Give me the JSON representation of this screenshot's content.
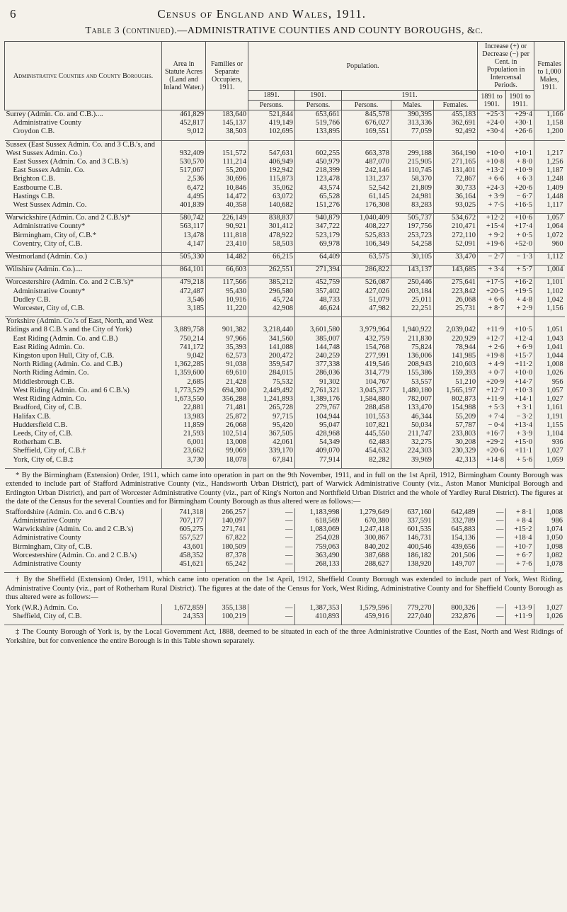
{
  "header": {
    "page_number": "6",
    "running_title": "Census of England and Wales, 1911."
  },
  "table": {
    "title": "Table 3 (continued).—ADMINISTRATIVE COUNTIES AND COUNTY BOROUGHS, &c.",
    "columns": {
      "name": "Administrative Counties and County Boroughs.",
      "area": "Area in Statute Acres (Land and Inland Water.)",
      "families": "Families or Separate Occupiers, 1911.",
      "population": "Population.",
      "years": [
        "1891.",
        "1901.",
        "1911."
      ],
      "persons": [
        "Persons.",
        "Persons.",
        "Persons."
      ],
      "males": "Males.",
      "females": "Females.",
      "increase": "Increase (+) or Decrease (−) per Cent. in Population in Intercensal Periods.",
      "periods": [
        "1891 to 1901.",
        "1901 to 1911."
      ],
      "ratio": "Females to 1,000 Males, 1911."
    },
    "groups": [
      {
        "rows": [
          {
            "name": "Surrey (Admin. Co. and C.B.)....",
            "cells": [
              "461,829",
              "183,640",
              "521,844",
              "653,661",
              "845,578",
              "390,395",
              "455,183",
              "+25·3",
              "+29·4",
              "1,166"
            ]
          },
          {
            "name": "Administrative County",
            "cells": [
              "452,817",
              "145,137",
              "419,149",
              "519,766",
              "676,027",
              "313,336",
              "362,691",
              "+24·0",
              "+30·1",
              "1,158"
            ]
          },
          {
            "name": "Croydon C.B.",
            "cells": [
              "9,012",
              "38,503",
              "102,695",
              "133,895",
              "169,551",
              "77,059",
              "92,492",
              "+30·4",
              "+26·6",
              "1,200"
            ]
          }
        ]
      },
      {
        "rows": [
          {
            "name": "Sussex (East Sussex Admin. Co. and 3 C.B.'s, and West Sussex Admin. Co.)",
            "cells": [
              "932,409",
              "151,572",
              "547,631",
              "602,255",
              "663,378",
              "299,188",
              "364,190",
              "+10·0",
              "+10·1",
              "1,217"
            ]
          },
          {
            "name": "East Sussex (Admin. Co. and 3 C.B.'s)",
            "cells": [
              "530,570",
              "111,214",
              "406,949",
              "450,979",
              "487,070",
              "215,905",
              "271,165",
              "+10·8",
              "+ 8·0",
              "1,256"
            ]
          },
          {
            "name": "East Sussex Admin. Co.",
            "cells": [
              "517,067",
              "55,200",
              "192,942",
              "218,399",
              "242,146",
              "110,745",
              "131,401",
              "+13·2",
              "+10·9",
              "1,187"
            ]
          },
          {
            "name": "Brighton C.B.",
            "cells": [
              "2,536",
              "30,696",
              "115,873",
              "123,478",
              "131,237",
              "58,370",
              "72,867",
              "+ 6·6",
              "+ 6·3",
              "1,248"
            ]
          },
          {
            "name": "Eastbourne C.B.",
            "cells": [
              "6,472",
              "10,846",
              "35,062",
              "43,574",
              "52,542",
              "21,809",
              "30,733",
              "+24·3",
              "+20·6",
              "1,409"
            ]
          },
          {
            "name": "Hastings C.B.",
            "cells": [
              "4,495",
              "14,472",
              "63,072",
              "65,528",
              "61,145",
              "24,981",
              "36,164",
              "+ 3·9",
              "− 6·7",
              "1,448"
            ]
          },
          {
            "name": "West Sussex Admin. Co.",
            "cells": [
              "401,839",
              "40,358",
              "140,682",
              "151,276",
              "176,308",
              "83,283",
              "93,025",
              "+ 7·5",
              "+16·5",
              "1,117"
            ]
          }
        ]
      },
      {
        "rows": [
          {
            "name": "Warwickshire (Admin. Co. and 2 C.B.'s)*",
            "cells": [
              "580,742",
              "226,149",
              "838,837",
              "940,879",
              "1,040,409",
              "505,737",
              "534,672",
              "+12·2",
              "+10·6",
              "1,057"
            ]
          },
          {
            "name": "Administrative County*",
            "cells": [
              "563,117",
              "90,921",
              "301,412",
              "347,722",
              "408,227",
              "197,756",
              "210,471",
              "+15·4",
              "+17·4",
              "1,064"
            ]
          },
          {
            "name": "Birmingham, City of, C.B.*",
            "cells": [
              "13,478",
              "111,818",
              "478,922",
              "523,179",
              "525,833",
              "253,723",
              "272,110",
              "+ 9·2",
              "+ 0·5",
              "1,072"
            ]
          },
          {
            "name": "Coventry, City of, C.B.",
            "cells": [
              "4,147",
              "23,410",
              "58,503",
              "69,978",
              "106,349",
              "54,258",
              "52,091",
              "+19·6",
              "+52·0",
              "960"
            ]
          }
        ]
      },
      {
        "rows": [
          {
            "name": "Westmorland (Admin. Co.)",
            "cells": [
              "505,330",
              "14,482",
              "66,215",
              "64,409",
              "63,575",
              "30,105",
              "33,470",
              "− 2·7",
              "− 1·3",
              "1,112"
            ]
          }
        ]
      },
      {
        "rows": [
          {
            "name": "Wiltshire (Admin. Co.)....",
            "cells": [
              "864,101",
              "66,603",
              "262,551",
              "271,394",
              "286,822",
              "143,137",
              "143,685",
              "+ 3·4",
              "+ 5·7",
              "1,004"
            ]
          }
        ]
      },
      {
        "rows": [
          {
            "name": "Worcestershire (Admin. Co. and 2 C.B.'s)*",
            "cells": [
              "479,218",
              "117,566",
              "385,212",
              "452,759",
              "526,087",
              "250,446",
              "275,641",
              "+17·5",
              "+16·2",
              "1,101"
            ]
          },
          {
            "name": "Administrative County*",
            "cells": [
              "472,487",
              "95,430",
              "296,580",
              "357,402",
              "427,026",
              "203,184",
              "223,842",
              "+20·5",
              "+19·5",
              "1,102"
            ]
          },
          {
            "name": "Dudley C.B.",
            "cells": [
              "3,546",
              "10,916",
              "45,724",
              "48,733",
              "51,079",
              "25,011",
              "26,068",
              "+ 6·6",
              "+ 4·8",
              "1,042"
            ]
          },
          {
            "name": "Worcester, City of, C.B.",
            "cells": [
              "3,185",
              "11,220",
              "42,908",
              "46,624",
              "47,982",
              "22,251",
              "25,731",
              "+ 8·7",
              "+ 2·9",
              "1,156"
            ]
          }
        ]
      },
      {
        "rows": [
          {
            "name": "Yorkshire (Admin. Co.'s of East, North, and West Ridings and 8 C.B.'s and the City of York)",
            "cells": [
              "3,889,758",
              "901,382",
              "3,218,440",
              "3,601,580",
              "3,979,964",
              "1,940,922",
              "2,039,042",
              "+11·9",
              "+10·5",
              "1,051"
            ]
          },
          {
            "name": "East Riding (Admin. Co. and C.B.)",
            "cells": [
              "750,214",
              "97,966",
              "341,560",
              "385,007",
              "432,759",
              "211,830",
              "220,929",
              "+12·7",
              "+12·4",
              "1,043"
            ]
          },
          {
            "name": "East Riding Admin. Co.",
            "cells": [
              "741,172",
              "35,393",
              "141,088",
              "144,748",
              "154,768",
              "75,824",
              "78,944",
              "+ 2·6",
              "+ 6·9",
              "1,041"
            ]
          },
          {
            "name": "Kingston upon Hull, City of, C.B.",
            "cells": [
              "9,042",
              "62,573",
              "200,472",
              "240,259",
              "277,991",
              "136,006",
              "141,985",
              "+19·8",
              "+15·7",
              "1,044"
            ]
          },
          {
            "name": "North Riding (Admin. Co. and C.B.)",
            "cells": [
              "1,362,285",
              "91,038",
              "359,547",
              "377,338",
              "419,546",
              "208,943",
              "210,603",
              "+ 4·9",
              "+11·2",
              "1,008"
            ]
          },
          {
            "name": "North Riding Admin. Co.",
            "cells": [
              "1,359,600",
              "69,610",
              "284,015",
              "286,036",
              "314,779",
              "155,386",
              "159,393",
              "+ 0·7",
              "+10·0",
              "1,026"
            ]
          },
          {
            "name": "Middlesbrough C.B.",
            "cells": [
              "2,685",
              "21,428",
              "75,532",
              "91,302",
              "104,767",
              "53,557",
              "51,210",
              "+20·9",
              "+14·7",
              "956"
            ]
          },
          {
            "name": "West Riding (Admin. Co. and 6 C.B.'s)",
            "cells": [
              "1,773,529",
              "694,300",
              "2,449,492",
              "2,761,321",
              "3,045,377",
              "1,480,180",
              "1,565,197",
              "+12·7",
              "+10·3",
              "1,057"
            ]
          },
          {
            "name": "West Riding Admin. Co.",
            "cells": [
              "1,673,550",
              "356,288",
              "1,241,893",
              "1,389,176",
              "1,584,880",
              "782,007",
              "802,873",
              "+11·9",
              "+14·1",
              "1,027"
            ]
          },
          {
            "name": "Bradford, City of, C.B.",
            "cells": [
              "22,881",
              "71,481",
              "265,728",
              "279,767",
              "288,458",
              "133,470",
              "154,988",
              "+ 5·3",
              "+ 3·1",
              "1,161"
            ]
          },
          {
            "name": "Halifax C.B.",
            "cells": [
              "13,983",
              "25,872",
              "97,715",
              "104,944",
              "101,553",
              "46,344",
              "55,209",
              "+ 7·4",
              "− 3·2",
              "1,191"
            ]
          },
          {
            "name": "Huddersfield C.B.",
            "cells": [
              "11,859",
              "26,068",
              "95,420",
              "95,047",
              "107,821",
              "50,034",
              "57,787",
              "− 0·4",
              "+13·4",
              "1,155"
            ]
          },
          {
            "name": "Leeds, City of, C.B.",
            "cells": [
              "21,593",
              "102,514",
              "367,505",
              "428,968",
              "445,550",
              "211,747",
              "233,803",
              "+16·7",
              "+ 3·9",
              "1,104"
            ]
          },
          {
            "name": "Rotherham C.B.",
            "cells": [
              "6,001",
              "13,008",
              "42,061",
              "54,349",
              "62,483",
              "32,275",
              "30,208",
              "+29·2",
              "+15·0",
              "936"
            ]
          },
          {
            "name": "Sheffield, City of, C.B.†",
            "cells": [
              "23,662",
              "99,069",
              "339,170",
              "409,070",
              "454,632",
              "224,303",
              "230,329",
              "+20·6",
              "+11·1",
              "1,027"
            ]
          },
          {
            "name": "York, City of, C.B.‡",
            "cells": [
              "3,730",
              "18,078",
              "67,841",
              "77,914",
              "82,282",
              "39,969",
              "42,313",
              "+14·8",
              "+ 5·6",
              "1,059"
            ]
          }
        ]
      }
    ]
  },
  "footnotes": [
    {
      "text": "* By the Birmingham (Extension) Order, 1911, which came into operation in part on the 9th November, 1911, and in full on the 1st April, 1912, Birmingham County Borough was extended to include part of Stafford Administrative County (viz., Handsworth Urban District), part of Warwick Administrative County (viz., Aston Manor Municipal Borough and Erdington Urban District), and part of Worcester Administrative County (viz., part of King's Norton and Northfield Urban District and the whole of Yardley Rural District). The figures at the date of the Census for the several Counties and for Birmingham County Borough as thus altered were as follows:—",
      "rows": [
        {
          "name": "Staffordshire (Admin. Co. and 6 C.B.'s)",
          "cells": [
            "741,318",
            "266,257",
            "—",
            "1,183,998",
            "1,279,649",
            "637,160",
            "642,489",
            "—",
            "+ 8·1",
            "1,008"
          ]
        },
        {
          "name": "Administrative County",
          "cells": [
            "707,177",
            "140,097",
            "—",
            "618,569",
            "670,380",
            "337,591",
            "332,789",
            "—",
            "+ 8·4",
            "986"
          ]
        },
        {
          "name": "Warwickshire (Admin. Co. and 2 C.B.'s)",
          "cells": [
            "605,275",
            "271,741",
            "—",
            "1,083,069",
            "1,247,418",
            "601,535",
            "645,883",
            "—",
            "+15·2",
            "1,074"
          ]
        },
        {
          "name": "Administrative County",
          "cells": [
            "557,527",
            "67,822",
            "—",
            "254,028",
            "300,867",
            "146,731",
            "154,136",
            "—",
            "+18·4",
            "1,050"
          ]
        },
        {
          "name": "Birmingham, City of, C.B.",
          "cells": [
            "43,601",
            "180,509",
            "—",
            "759,063",
            "840,202",
            "400,546",
            "439,656",
            "—",
            "+10·7",
            "1,098"
          ]
        },
        {
          "name": "Worcestershire (Admin. Co. and 2 C.B.'s)",
          "cells": [
            "458,352",
            "87,378",
            "—",
            "363,490",
            "387,688",
            "186,182",
            "201,506",
            "—",
            "+ 6·7",
            "1,082"
          ]
        },
        {
          "name": "Administrative County",
          "cells": [
            "451,621",
            "65,242",
            "—",
            "268,133",
            "288,627",
            "138,920",
            "149,707",
            "—",
            "+ 7·6",
            "1,078"
          ]
        }
      ]
    },
    {
      "text": "† By the Sheffield (Extension) Order, 1911, which came into operation on the 1st April, 1912, Sheffield County Borough was extended to include part of York, West Riding, Administrative County (viz., part of Rotherham Rural District). The figures at the date of the Census for York, West Riding, Administrative County and for Sheffield County Borough as thus altered were as follows:—",
      "rows": [
        {
          "name": "York (W.R.) Admin. Co.",
          "cells": [
            "1,672,859",
            "355,138",
            "—",
            "1,387,353",
            "1,579,596",
            "779,270",
            "800,326",
            "—",
            "+13·9",
            "1,027"
          ]
        },
        {
          "name": "Sheffield, City of, C.B.",
          "cells": [
            "24,353",
            "100,219",
            "—",
            "410,893",
            "459,916",
            "227,040",
            "232,876",
            "—",
            "+11·9",
            "1,026"
          ]
        }
      ]
    },
    {
      "text": "‡ The County Borough of York is, by the Local Government Act, 1888, deemed to be situated in each of the three Administrative Counties of the East, North and West Ridings of Yorkshire, but for convenience the entire Borough is in this Table shown separately.",
      "rows": []
    }
  ]
}
